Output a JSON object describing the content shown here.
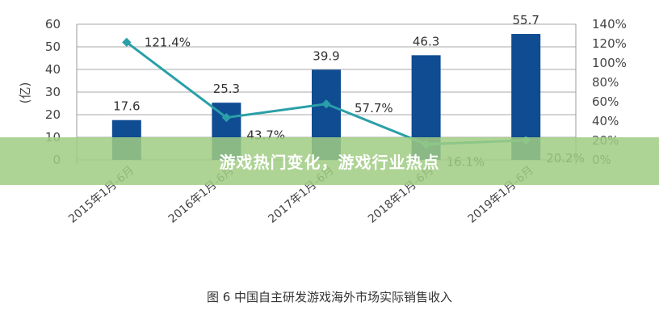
{
  "chart_data": {
    "type": "bar+line",
    "title": "图 6 中国自主研发游戏海外市场实际销售收入",
    "categories": [
      "2015年1月-6月",
      "2016年1月-6月",
      "2017年1月-6月",
      "2018年1月-6月",
      "2019年1月-6月"
    ],
    "ylabel": "(亿)",
    "ylim": [
      0,
      60
    ],
    "y_ticks": [
      "0",
      "10",
      "20",
      "30",
      "40",
      "50",
      "60"
    ],
    "y2lim": [
      0,
      140
    ],
    "y2_ticks": [
      "0%",
      "20%",
      "40%",
      "60%",
      "80%",
      "100%",
      "120%",
      "140%"
    ],
    "grid": true,
    "series": [
      {
        "type": "bar",
        "values": [
          17.6,
          25.3,
          39.9,
          46.3,
          55.7
        ],
        "labels": [
          "17.6",
          "25.3",
          "39.9",
          "46.3",
          "55.7"
        ],
        "color": "#0f4c92"
      },
      {
        "type": "line",
        "axis": "right",
        "values": [
          121.4,
          43.7,
          57.7,
          16.1,
          20.2
        ],
        "labels": [
          "121.4%",
          "43.7%",
          "57.7%",
          "16.1%",
          "20.2%"
        ],
        "color": "#2a9fa8"
      }
    ]
  },
  "banner": {
    "text": "游戏热门变化，游戏行业热点",
    "color": "#a0cd82"
  }
}
